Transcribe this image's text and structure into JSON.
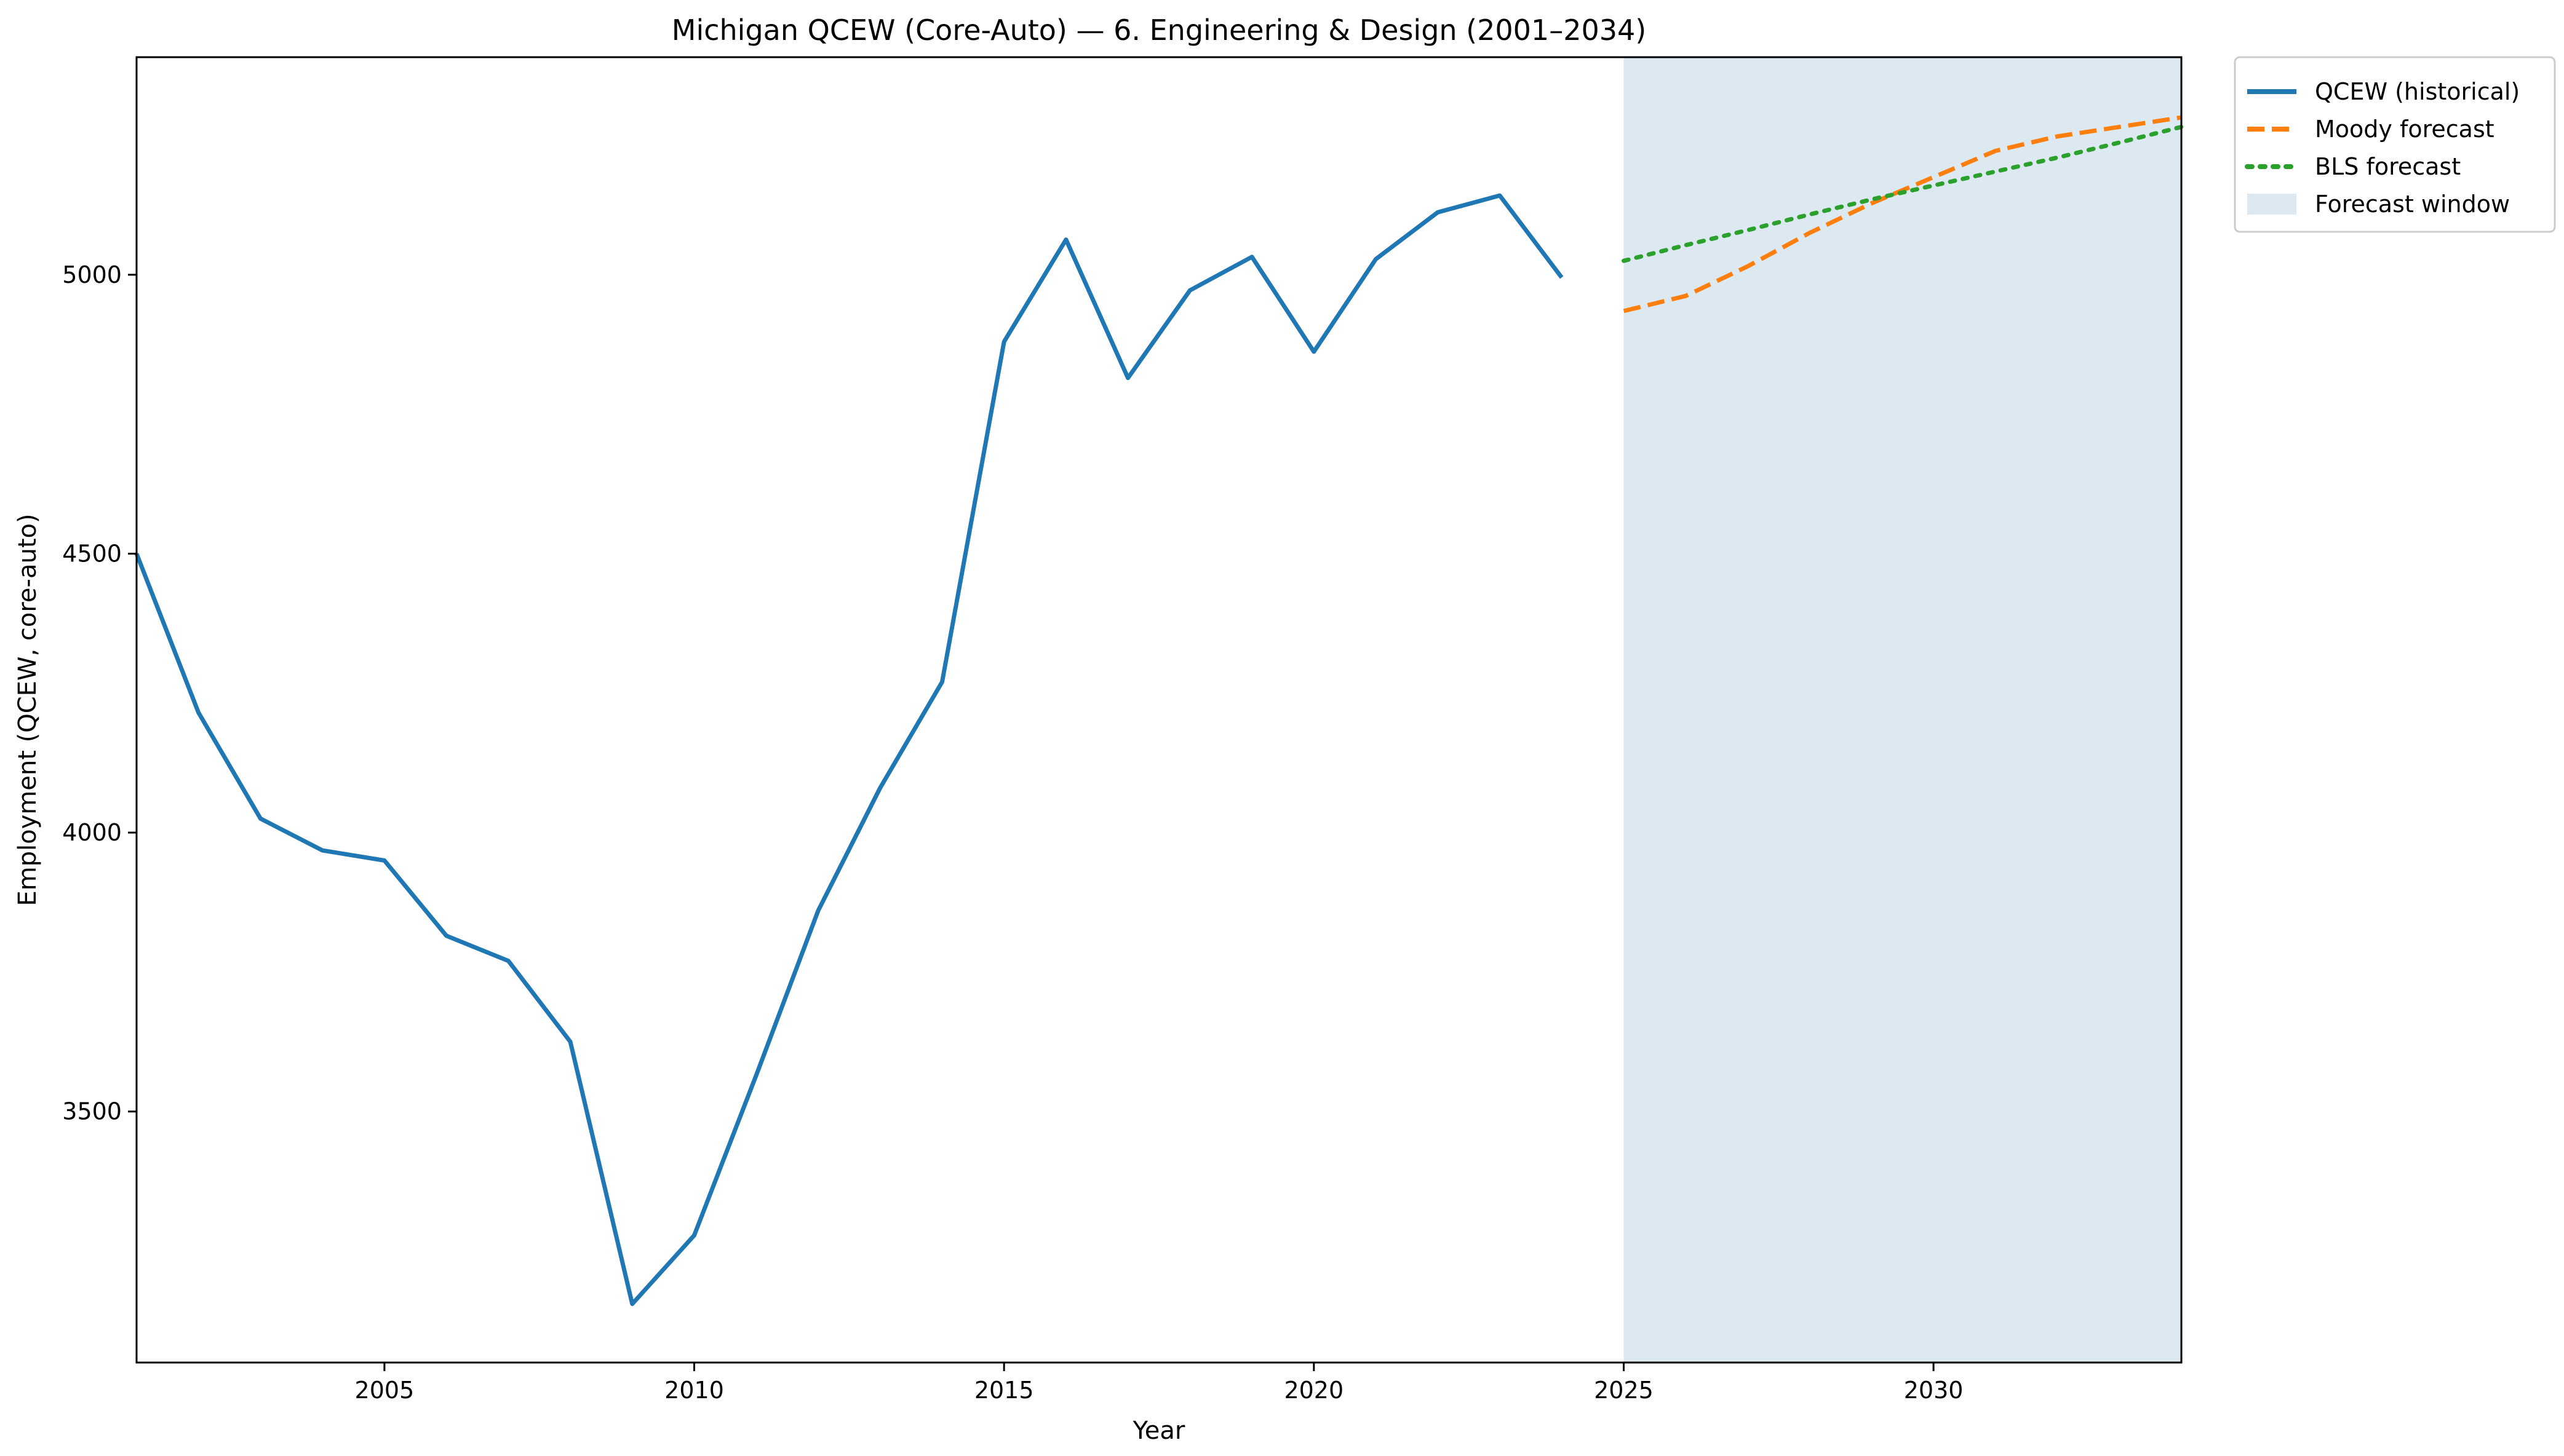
{
  "chart_data": {
    "type": "line",
    "title": "Michigan QCEW (Core-Auto) — 6. Engineering & Design (2001–2034)",
    "xlabel": "Year",
    "ylabel": "Employment (QCEW, core-auto)",
    "xlim": [
      2001,
      2034
    ],
    "ylim": [
      3050,
      5390
    ],
    "xticks": [
      2005,
      2010,
      2015,
      2020,
      2025,
      2030
    ],
    "yticks": [
      3500,
      4000,
      4500,
      5000
    ],
    "grid": false,
    "legend_position": "outside-top-right",
    "shaded_regions": [
      {
        "name": "Forecast window",
        "x_start": 2025,
        "x_end": 2034,
        "color": "#dce9f1"
      }
    ],
    "series": [
      {
        "name": "QCEW (historical)",
        "style": "solid",
        "color": "#1f77b4",
        "x": [
          2001,
          2002,
          2003,
          2004,
          2005,
          2006,
          2007,
          2008,
          2009,
          2010,
          2011,
          2012,
          2013,
          2014,
          2015,
          2016,
          2017,
          2018,
          2019,
          2020,
          2021,
          2022,
          2023,
          2024
        ],
        "y": [
          4500,
          4215,
          4025,
          3968,
          3950,
          3815,
          3770,
          3625,
          3155,
          3278,
          3565,
          3860,
          4080,
          4270,
          4880,
          5063,
          4815,
          4972,
          5032,
          4862,
          5028,
          5112,
          5142,
          4995
        ]
      },
      {
        "name": "Moody forecast",
        "style": "dashed",
        "color": "#ff7f0e",
        "x": [
          2025,
          2026,
          2027,
          2028,
          2029,
          2030,
          2031,
          2032,
          2033,
          2034
        ],
        "y": [
          4935,
          4962,
          5015,
          5075,
          5128,
          5175,
          5222,
          5248,
          5265,
          5282
        ]
      },
      {
        "name": "BLS forecast",
        "style": "dotted",
        "color": "#2ca02c",
        "x": [
          2025,
          2026,
          2027,
          2028,
          2029,
          2030,
          2031,
          2032,
          2033,
          2034
        ],
        "y": [
          5025,
          5053,
          5080,
          5108,
          5135,
          5160,
          5185,
          5210,
          5237,
          5265
        ]
      }
    ],
    "legend": [
      "QCEW (historical)",
      "Moody forecast",
      "BLS forecast",
      "Forecast window"
    ]
  }
}
